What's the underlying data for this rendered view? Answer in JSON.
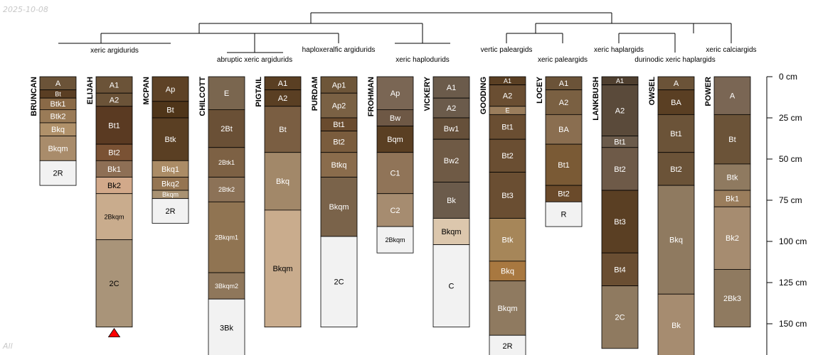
{
  "date_label": "2025-10-08",
  "footer_label": "All",
  "chart_data": {
    "type": "soil-profile-sketch",
    "depth_unit": "cm",
    "depth_ticks": [
      0,
      25,
      50,
      75,
      100,
      125,
      150
    ],
    "dendrogram": {
      "root": "top",
      "groups_level1": [
        {
          "profiles": [
            "BRUNCAN",
            "ELIJAH",
            "MCPAN",
            "CHILCOTT",
            "PIGTAIL",
            "PURDAM",
            "FROHMAN",
            "VICKERY"
          ]
        },
        {
          "profiles": [
            "GOODING",
            "LOCEY",
            "LANKBUSH",
            "OWSEL",
            "POWER"
          ]
        }
      ]
    },
    "taxa_labels": [
      {
        "text": "xeric argidurids",
        "profiles": [
          "BRUNCAN",
          "ELIJAH",
          "MCPAN"
        ]
      },
      {
        "text": "abruptic xeric argidurids",
        "profiles": [
          "CHILCOTT",
          "PIGTAIL"
        ]
      },
      {
        "text": "haploxeralfic argidurids",
        "profiles": [
          "PURDAM"
        ]
      },
      {
        "text": "xeric haplodurids",
        "profiles": [
          "FROHMAN",
          "VICKERY"
        ]
      },
      {
        "text": "vertic paleargids",
        "profiles": [
          "GOODING"
        ]
      },
      {
        "text": "xeric paleargids",
        "profiles": [
          "LOCEY"
        ]
      },
      {
        "text": "xeric haplargids",
        "profiles": [
          "LANKBUSH"
        ]
      },
      {
        "text": "durinodic xeric haplargids",
        "profiles": [
          "OWSEL"
        ]
      },
      {
        "text": "xeric calciargids",
        "profiles": [
          "POWER"
        ]
      }
    ],
    "profiles": [
      {
        "name": "BRUNCAN",
        "truncated": false,
        "horizons": [
          {
            "name": "A",
            "top": 0,
            "bottom": 8,
            "color": "#6b5338"
          },
          {
            "name": "Bt",
            "top": 8,
            "bottom": 13,
            "color": "#5a3e23"
          },
          {
            "name": "Btk1",
            "top": 13,
            "bottom": 20,
            "color": "#8a6a47"
          },
          {
            "name": "Btk2",
            "top": 20,
            "bottom": 28,
            "color": "#9a7b57"
          },
          {
            "name": "Bkq",
            "top": 28,
            "bottom": 36,
            "color": "#b0916a"
          },
          {
            "name": "Bkqm",
            "top": 36,
            "bottom": 51,
            "color": "#a98c6b"
          },
          {
            "name": "2R",
            "top": 51,
            "bottom": 66,
            "color": "#f2f2f2"
          }
        ]
      },
      {
        "name": "ELIJAH",
        "truncated": true,
        "horizons": [
          {
            "name": "A1",
            "top": 0,
            "bottom": 10,
            "color": "#6b5338"
          },
          {
            "name": "A2",
            "top": 10,
            "bottom": 18,
            "color": "#6b5338"
          },
          {
            "name": "Bt1",
            "top": 18,
            "bottom": 41,
            "color": "#5a3a22"
          },
          {
            "name": "Bt2",
            "top": 41,
            "bottom": 51,
            "color": "#7a5234"
          },
          {
            "name": "Bk1",
            "top": 51,
            "bottom": 61,
            "color": "#8e6f55"
          },
          {
            "name": "Bk2",
            "top": 61,
            "bottom": 71,
            "color": "#d2a98a"
          },
          {
            "name": "2Bkqm",
            "top": 71,
            "bottom": 99,
            "color": "#c9ac8d"
          },
          {
            "name": "2C",
            "top": 99,
            "bottom": 152,
            "color": "#a99479"
          }
        ]
      },
      {
        "name": "MCPAN",
        "truncated": false,
        "horizons": [
          {
            "name": "Ap",
            "top": 0,
            "bottom": 15,
            "color": "#5e4226"
          },
          {
            "name": "Bt",
            "top": 15,
            "bottom": 25,
            "color": "#4f3519"
          },
          {
            "name": "Btk",
            "top": 25,
            "bottom": 51,
            "color": "#5a3f23"
          },
          {
            "name": "Bkq1",
            "top": 51,
            "bottom": 61,
            "color": "#ab8c66"
          },
          {
            "name": "Bkq2",
            "top": 61,
            "bottom": 69,
            "color": "#957552"
          },
          {
            "name": "Bkqm",
            "top": 69,
            "bottom": 74,
            "color": "#a99272"
          },
          {
            "name": "2R",
            "top": 74,
            "bottom": 89,
            "color": "#f2f2f2"
          }
        ]
      },
      {
        "name": "CHILCOTT",
        "truncated": false,
        "horizons": [
          {
            "name": "E",
            "top": 0,
            "bottom": 20,
            "color": "#7a664f"
          },
          {
            "name": "2Bt",
            "top": 20,
            "bottom": 43,
            "color": "#6a5036"
          },
          {
            "name": "2Btk1",
            "top": 43,
            "bottom": 61,
            "color": "#7d6144"
          },
          {
            "name": "2Btk2",
            "top": 61,
            "bottom": 76,
            "color": "#8c7257"
          },
          {
            "name": "2Bkqm1",
            "top": 76,
            "bottom": 119,
            "color": "#907452"
          },
          {
            "name": "3Bkqm2",
            "top": 119,
            "bottom": 135,
            "color": "#8f775b"
          },
          {
            "name": "3Bk",
            "top": 135,
            "bottom": 170,
            "color": "#f2f2f2"
          }
        ]
      },
      {
        "name": "PIGTAIL",
        "truncated": false,
        "horizons": [
          {
            "name": "A1",
            "top": 0,
            "bottom": 8,
            "color": "#5a3f23"
          },
          {
            "name": "A2",
            "top": 8,
            "bottom": 18,
            "color": "#5a3f23"
          },
          {
            "name": "Bt",
            "top": 18,
            "bottom": 46,
            "color": "#7a5e42"
          },
          {
            "name": "Bkq",
            "top": 46,
            "bottom": 81,
            "color": "#a28869"
          },
          {
            "name": "Bkqm",
            "top": 81,
            "bottom": 152,
            "color": "#c9ac8d"
          }
        ]
      },
      {
        "name": "PURDAM",
        "truncated": false,
        "horizons": [
          {
            "name": "Ap1",
            "top": 0,
            "bottom": 10,
            "color": "#6e5639"
          },
          {
            "name": "Ap2",
            "top": 10,
            "bottom": 25,
            "color": "#7a6144"
          },
          {
            "name": "Bt1",
            "top": 25,
            "bottom": 33,
            "color": "#6a4b2e"
          },
          {
            "name": "Bt2",
            "top": 33,
            "bottom": 46,
            "color": "#7a5c3d"
          },
          {
            "name": "Btkq",
            "top": 46,
            "bottom": 61,
            "color": "#8a6c4c"
          },
          {
            "name": "Bkqm",
            "top": 61,
            "bottom": 97,
            "color": "#7a634a"
          },
          {
            "name": "2C",
            "top": 97,
            "bottom": 152,
            "color": "#f2f2f2"
          }
        ]
      },
      {
        "name": "FROHMAN",
        "truncated": false,
        "horizons": [
          {
            "name": "Ap",
            "top": 0,
            "bottom": 20,
            "color": "#7a6654"
          },
          {
            "name": "Bw",
            "top": 20,
            "bottom": 30,
            "color": "#6e5845"
          },
          {
            "name": "Bqm",
            "top": 30,
            "bottom": 46,
            "color": "#5a3f23"
          },
          {
            "name": "C1",
            "top": 46,
            "bottom": 71,
            "color": "#907458"
          },
          {
            "name": "C2",
            "top": 71,
            "bottom": 91,
            "color": "#a68c70"
          },
          {
            "name": "2Bkqm",
            "top": 91,
            "bottom": 107,
            "color": "#f2f2f2"
          }
        ]
      },
      {
        "name": "VICKERY",
        "truncated": false,
        "horizons": [
          {
            "name": "A1",
            "top": 0,
            "bottom": 13,
            "color": "#6b5b4b"
          },
          {
            "name": "A2",
            "top": 13,
            "bottom": 25,
            "color": "#6b5b4b"
          },
          {
            "name": "Bw1",
            "top": 25,
            "bottom": 38,
            "color": "#66503a"
          },
          {
            "name": "Bw2",
            "top": 38,
            "bottom": 64,
            "color": "#6f5a45"
          },
          {
            "name": "Bk",
            "top": 64,
            "bottom": 86,
            "color": "#6b5b4b"
          },
          {
            "name": "Bkqm",
            "top": 86,
            "bottom": 102,
            "color": "#dcc7ad"
          },
          {
            "name": "C",
            "top": 102,
            "bottom": 152,
            "color": "#f2f2f2"
          }
        ]
      },
      {
        "name": "GOODING",
        "truncated": false,
        "horizons": [
          {
            "name": "A1",
            "top": 0,
            "bottom": 5,
            "color": "#5a3f23"
          },
          {
            "name": "A2",
            "top": 5,
            "bottom": 18,
            "color": "#6a4e32"
          },
          {
            "name": "E",
            "top": 18,
            "bottom": 23,
            "color": "#9a7d5c"
          },
          {
            "name": "Bt1",
            "top": 23,
            "bottom": 38,
            "color": "#6a4e32"
          },
          {
            "name": "Bt2",
            "top": 38,
            "bottom": 58,
            "color": "#6a4e32"
          },
          {
            "name": "Bt3",
            "top": 58,
            "bottom": 86,
            "color": "#6a4e32"
          },
          {
            "name": "Btk",
            "top": 86,
            "bottom": 112,
            "color": "#a68659"
          },
          {
            "name": "Bkq",
            "top": 112,
            "bottom": 124,
            "color": "#a87840"
          },
          {
            "name": "Bkqm",
            "top": 124,
            "bottom": 157,
            "color": "#8f7a60"
          },
          {
            "name": "2R",
            "top": 157,
            "bottom": 170,
            "color": "#f2f2f2"
          }
        ]
      },
      {
        "name": "LOCEY",
        "truncated": false,
        "horizons": [
          {
            "name": "A1",
            "top": 0,
            "bottom": 8,
            "color": "#6b5338"
          },
          {
            "name": "A2",
            "top": 8,
            "bottom": 23,
            "color": "#7a6042"
          },
          {
            "name": "BA",
            "top": 23,
            "bottom": 41,
            "color": "#8a6e50"
          },
          {
            "name": "Bt1",
            "top": 41,
            "bottom": 66,
            "color": "#7a5a35"
          },
          {
            "name": "Bt2",
            "top": 66,
            "bottom": 76,
            "color": "#6a4a2a"
          },
          {
            "name": "R",
            "top": 76,
            "bottom": 91,
            "color": "#f2f2f2"
          }
        ]
      },
      {
        "name": "LANKBUSH",
        "truncated": false,
        "horizons": [
          {
            "name": "A1",
            "top": 0,
            "bottom": 5,
            "color": "#4f3f2f"
          },
          {
            "name": "A2",
            "top": 5,
            "bottom": 36,
            "color": "#5a4a3a"
          },
          {
            "name": "Bt1",
            "top": 36,
            "bottom": 43,
            "color": "#6b5b4b"
          },
          {
            "name": "Bt2",
            "top": 43,
            "bottom": 69,
            "color": "#6e5a48"
          },
          {
            "name": "Bt3",
            "top": 69,
            "bottom": 107,
            "color": "#5a3f23"
          },
          {
            "name": "Bt4",
            "top": 107,
            "bottom": 127,
            "color": "#6a4e32"
          },
          {
            "name": "2C",
            "top": 127,
            "bottom": 165,
            "color": "#8f7a60"
          }
        ]
      },
      {
        "name": "OWSEL",
        "truncated": false,
        "horizons": [
          {
            "name": "A",
            "top": 0,
            "bottom": 8,
            "color": "#6b5338"
          },
          {
            "name": "BA",
            "top": 8,
            "bottom": 23,
            "color": "#5a3f23"
          },
          {
            "name": "Bt1",
            "top": 23,
            "bottom": 46,
            "color": "#6b5338"
          },
          {
            "name": "Bt2",
            "top": 46,
            "bottom": 66,
            "color": "#6b5338"
          },
          {
            "name": "Bkq",
            "top": 66,
            "bottom": 132,
            "color": "#8f7a60"
          },
          {
            "name": "Bk",
            "top": 132,
            "bottom": 170,
            "color": "#a68c70"
          }
        ]
      },
      {
        "name": "POWER",
        "truncated": false,
        "horizons": [
          {
            "name": "A",
            "top": 0,
            "bottom": 23,
            "color": "#7a6654"
          },
          {
            "name": "Bt",
            "top": 23,
            "bottom": 53,
            "color": "#6b5338"
          },
          {
            "name": "Btk",
            "top": 53,
            "bottom": 69,
            "color": "#8f7a60"
          },
          {
            "name": "Bk1",
            "top": 69,
            "bottom": 79,
            "color": "#9a7d5c"
          },
          {
            "name": "Bk2",
            "top": 79,
            "bottom": 117,
            "color": "#a68c70"
          },
          {
            "name": "2Bk3",
            "top": 117,
            "bottom": 152,
            "color": "#8f7a60"
          }
        ]
      }
    ]
  }
}
